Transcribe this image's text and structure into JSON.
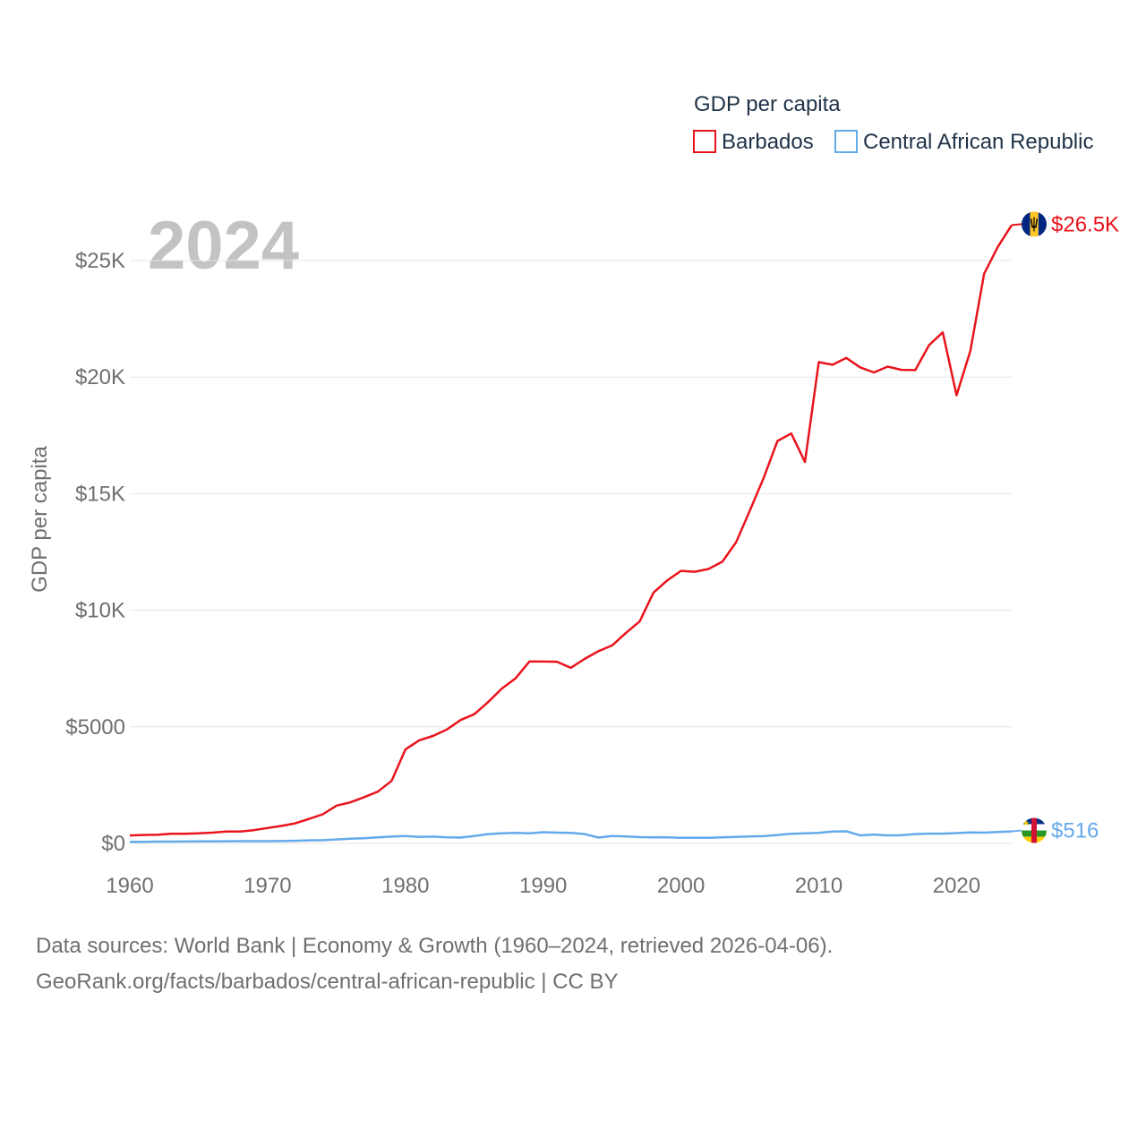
{
  "chart_data": {
    "type": "line",
    "current_year_label": "2024",
    "ylabel": "GDP per capita",
    "xlabel": "",
    "legend": {
      "title": "GDP per capita",
      "placement": "top-right"
    },
    "x_ticks": [
      "1960",
      "1970",
      "1980",
      "1990",
      "2000",
      "2010",
      "2020"
    ],
    "y_ticks": [
      {
        "value": 0,
        "label": "$0"
      },
      {
        "value": 5000,
        "label": "$5000"
      },
      {
        "value": 10000,
        "label": "$10K"
      },
      {
        "value": 15000,
        "label": "$15K"
      },
      {
        "value": 20000,
        "label": "$20K"
      },
      {
        "value": 25000,
        "label": "$25K"
      }
    ],
    "xlim": [
      1960,
      2024
    ],
    "ylim": [
      0,
      26700
    ],
    "grid": true,
    "series": [
      {
        "name": "Barbados",
        "color": "#e8141c",
        "end_label": "$26.5K",
        "flag": "barbados-flag",
        "x": [
          1960,
          1961,
          1962,
          1963,
          1964,
          1965,
          1966,
          1967,
          1968,
          1969,
          1970,
          1971,
          1972,
          1973,
          1974,
          1975,
          1976,
          1977,
          1978,
          1979,
          1980,
          1981,
          1982,
          1983,
          1984,
          1985,
          1986,
          1987,
          1988,
          1989,
          1990,
          1991,
          1992,
          1993,
          1994,
          1995,
          1996,
          1997,
          1998,
          1999,
          2000,
          2001,
          2002,
          2003,
          2004,
          2005,
          2006,
          2007,
          2008,
          2009,
          2010,
          2011,
          2012,
          2013,
          2014,
          2015,
          2016,
          2017,
          2018,
          2019,
          2020,
          2021,
          2022,
          2023,
          2024
        ],
        "values": [
          340,
          360,
          370,
          410,
          410,
          430,
          460,
          510,
          510,
          570,
          660,
          750,
          860,
          1050,
          1250,
          1620,
          1760,
          1980,
          2220,
          2680,
          4030,
          4420,
          4610,
          4880,
          5290,
          5540,
          6060,
          6640,
          7080,
          7800,
          7800,
          7790,
          7530,
          7910,
          8240,
          8490,
          9030,
          9520,
          10750,
          11280,
          11690,
          11650,
          11770,
          12080,
          12920,
          14280,
          15680,
          17260,
          17580,
          16360,
          20640,
          20530,
          20820,
          20420,
          20200,
          20450,
          20310,
          20300,
          21370,
          21920,
          19220,
          21120,
          24430,
          25590,
          26520
        ]
      },
      {
        "name": "Central African Republic",
        "color": "#64aaea",
        "end_label": "$516",
        "flag": "central-african-republic-flag",
        "x": [
          1960,
          1961,
          1962,
          1963,
          1964,
          1965,
          1966,
          1967,
          1968,
          1969,
          1970,
          1971,
          1972,
          1973,
          1974,
          1975,
          1976,
          1977,
          1978,
          1979,
          1980,
          1981,
          1982,
          1983,
          1984,
          1985,
          1986,
          1987,
          1988,
          1989,
          1990,
          1991,
          1992,
          1993,
          1994,
          1995,
          1996,
          1997,
          1998,
          1999,
          2000,
          2001,
          2002,
          2003,
          2004,
          2005,
          2006,
          2007,
          2008,
          2009,
          2010,
          2011,
          2012,
          2013,
          2014,
          2015,
          2016,
          2017,
          2018,
          2019,
          2020,
          2021,
          2022,
          2023,
          2024
        ],
        "values": [
          70,
          70,
          75,
          78,
          80,
          85,
          90,
          92,
          95,
          95,
          95,
          100,
          110,
          130,
          140,
          170,
          200,
          220,
          260,
          290,
          320,
          280,
          290,
          260,
          250,
          320,
          400,
          430,
          450,
          430,
          480,
          460,
          450,
          400,
          250,
          320,
          300,
          270,
          260,
          260,
          240,
          240,
          240,
          260,
          280,
          300,
          310,
          360,
          410,
          430,
          450,
          510,
          520,
          340,
          380,
          340,
          350,
          400,
          420,
          420,
          440,
          470,
          460,
          490,
          516
        ]
      }
    ]
  },
  "footer": {
    "line1": "Data sources: World Bank | Economy & Growth (1960–2024, retrieved 2026-04-06).",
    "line2": "GeoRank.org/facts/barbados/central-african-republic | CC BY"
  }
}
